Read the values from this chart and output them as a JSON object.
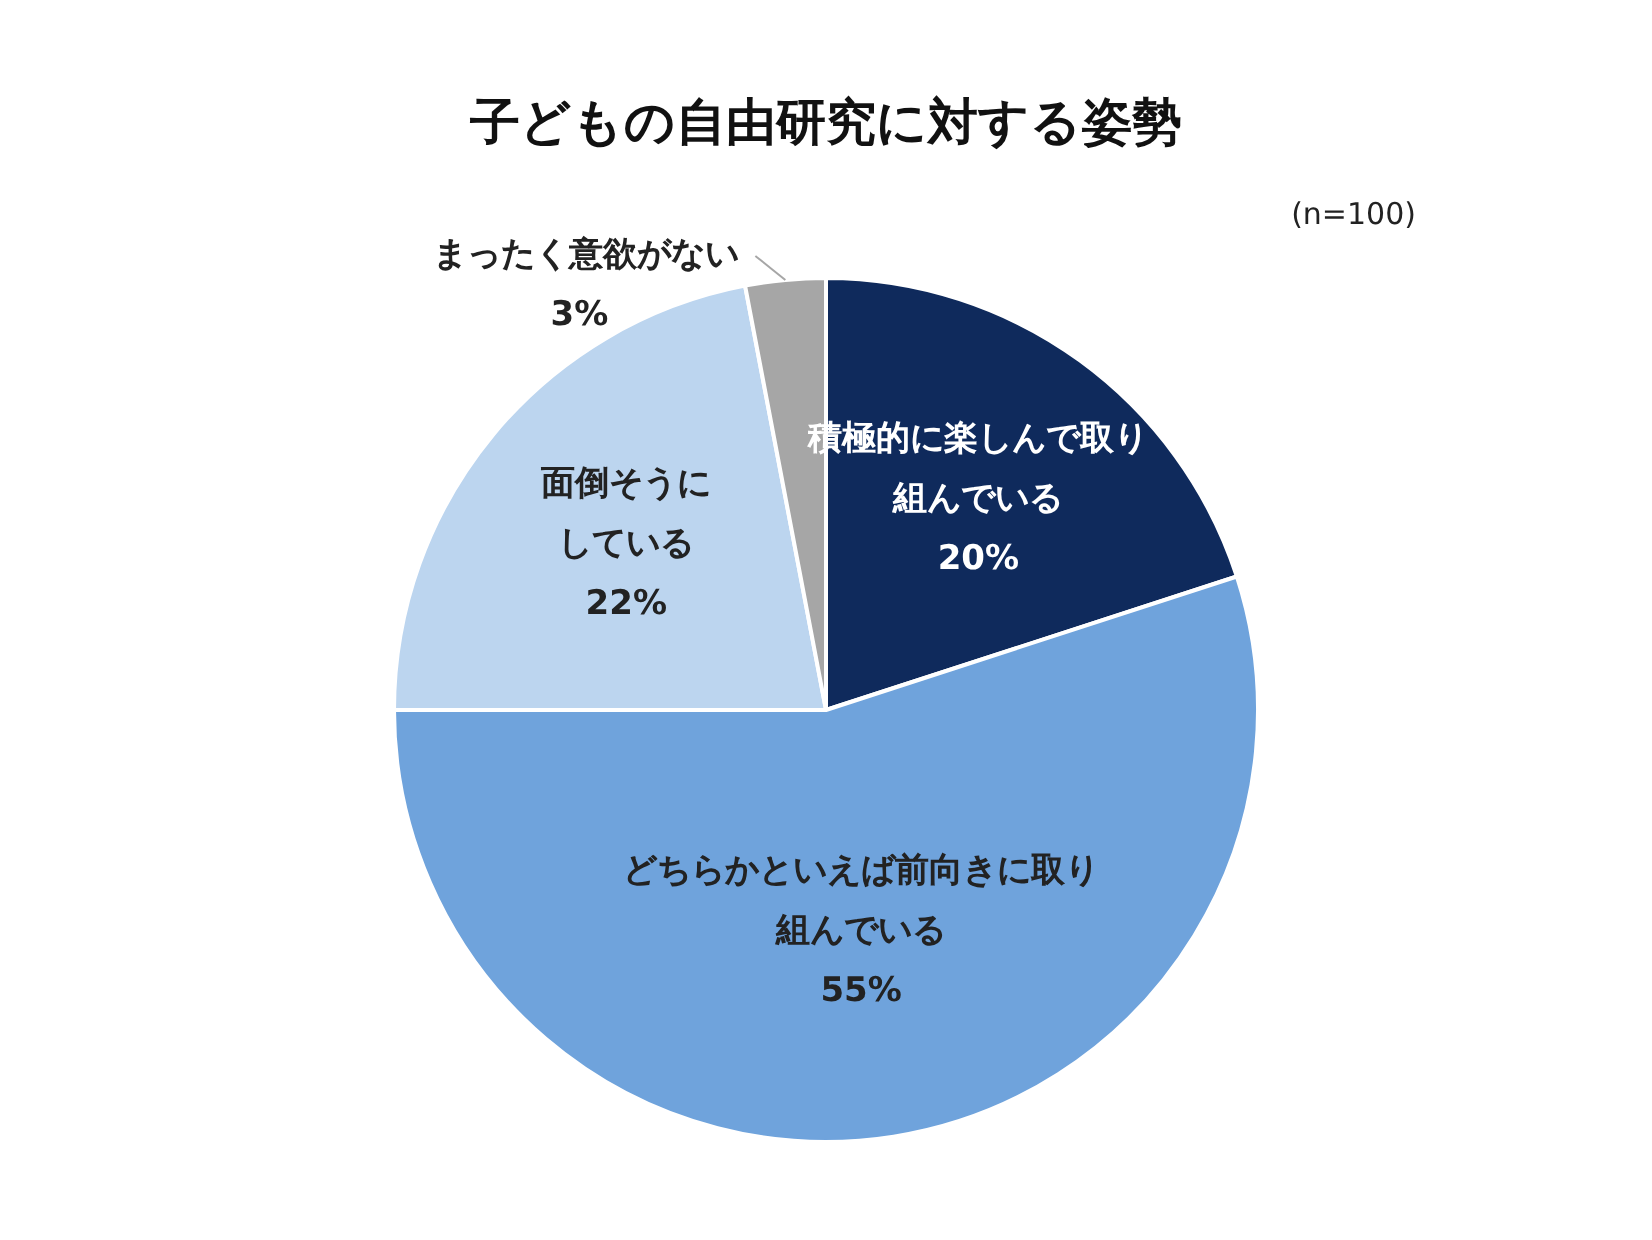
{
  "chart_data": {
    "type": "pie",
    "title": "子どもの自由研究に対する姿勢",
    "categories": [
      "積極的に楽しんで取り組んでいる",
      "どちらかといえば前向きに取り組んでいる",
      "面倒そうにしている",
      "まったく意欲がない"
    ],
    "values": [
      20,
      55,
      22,
      3
    ],
    "value_labels": [
      "20%",
      "55%",
      "22%",
      "3%"
    ],
    "colors": [
      "#0f2a5c",
      "#6fa3dc",
      "#bcd5ef",
      "#a6a6a6"
    ],
    "annotations": [
      "(n=100)"
    ],
    "legend": false
  }
}
